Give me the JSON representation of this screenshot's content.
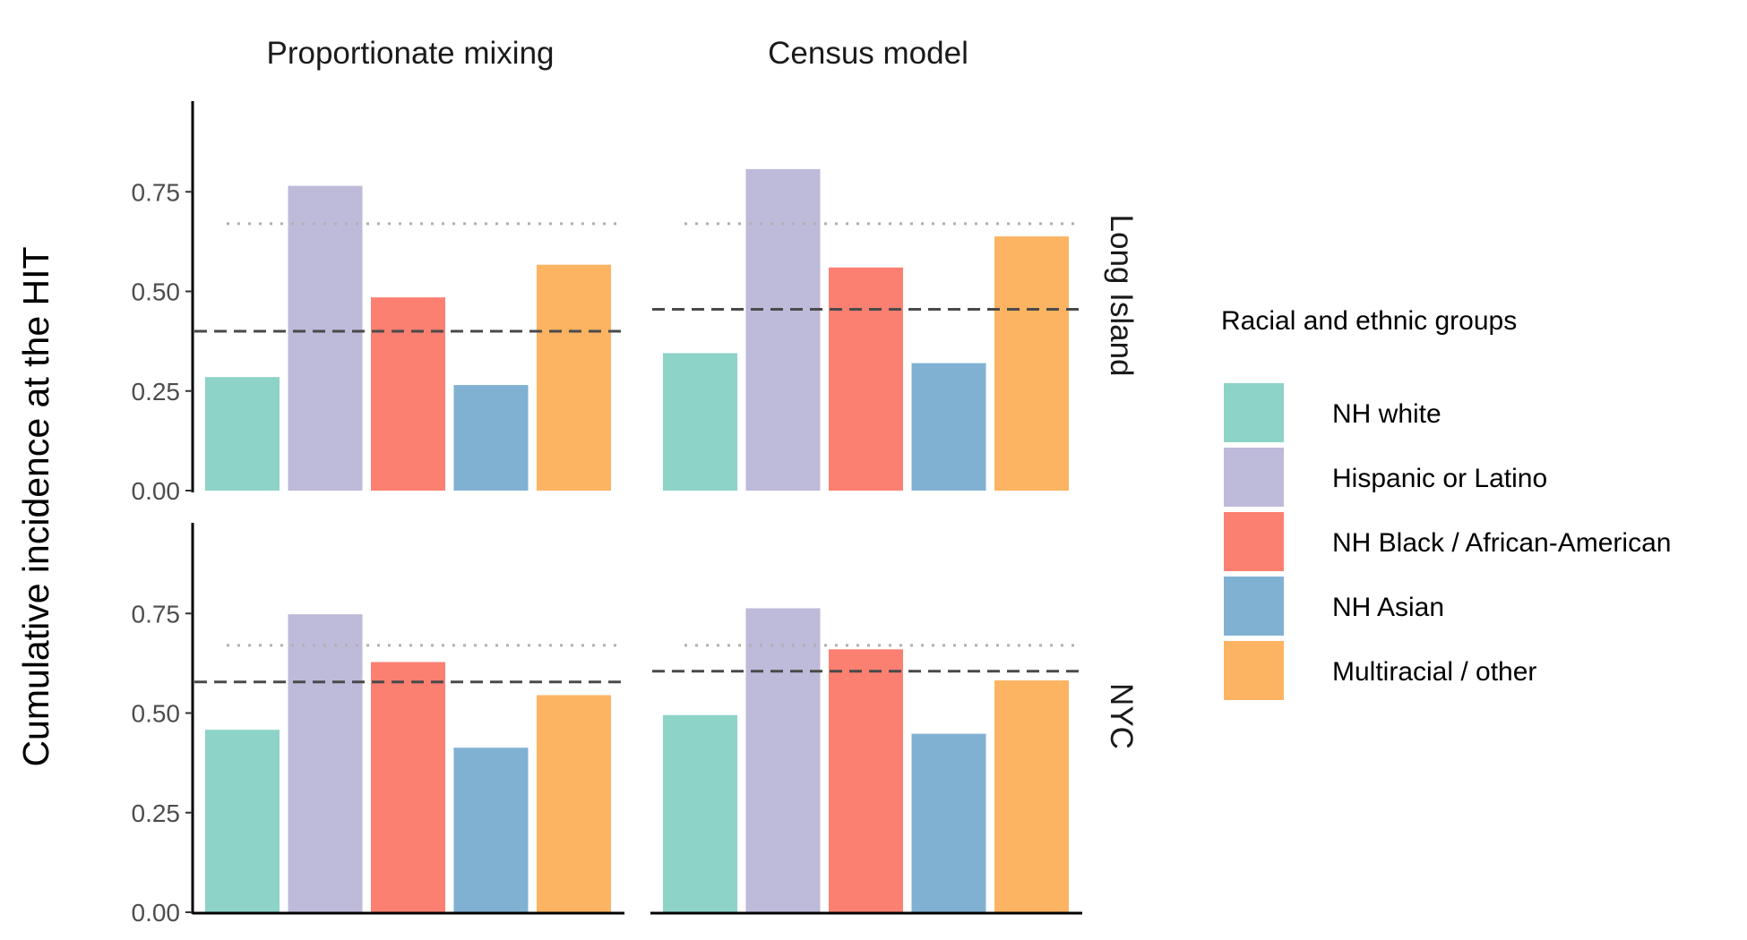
{
  "chart_data": {
    "type": "bar",
    "ylabel": "Cumulative incidence at the HIT",
    "xlabel": "",
    "ylim": [
      0,
      0.98
    ],
    "yticks": [
      "0.00",
      "0.25",
      "0.50",
      "0.75"
    ],
    "grid": false,
    "facet_columns": [
      "Proportionate mixing",
      "Census model"
    ],
    "facet_rows": [
      "Long Island",
      "NYC"
    ],
    "legend": {
      "title": "Racial and ethnic groups",
      "position": "right"
    },
    "series": [
      {
        "name": "NH white",
        "color": "#8DD3C7"
      },
      {
        "name": "Hispanic or Latino",
        "color": "#BEBADA"
      },
      {
        "name": "NH Black / African-American",
        "color": "#FB8072"
      },
      {
        "name": "NH Asian",
        "color": "#80B1D3"
      },
      {
        "name": "Multiracial / other",
        "color": "#FDB462"
      }
    ],
    "panels": [
      {
        "column": "Proportionate mixing",
        "row": "Long Island",
        "values": [
          0.285,
          0.765,
          0.485,
          0.265,
          0.567
        ],
        "dashed_line": 0.4,
        "dotted_line": 0.67
      },
      {
        "column": "Census model",
        "row": "Long Island",
        "values": [
          0.345,
          0.807,
          0.56,
          0.32,
          0.638
        ],
        "dashed_line": 0.455,
        "dotted_line": 0.67
      },
      {
        "column": "Proportionate mixing",
        "row": "NYC",
        "values": [
          0.458,
          0.748,
          0.628,
          0.413,
          0.545
        ],
        "dashed_line": 0.578,
        "dotted_line": 0.67
      },
      {
        "column": "Census model",
        "row": "NYC",
        "values": [
          0.495,
          0.763,
          0.66,
          0.448,
          0.582
        ],
        "dashed_line": 0.605,
        "dotted_line": 0.67
      }
    ]
  }
}
